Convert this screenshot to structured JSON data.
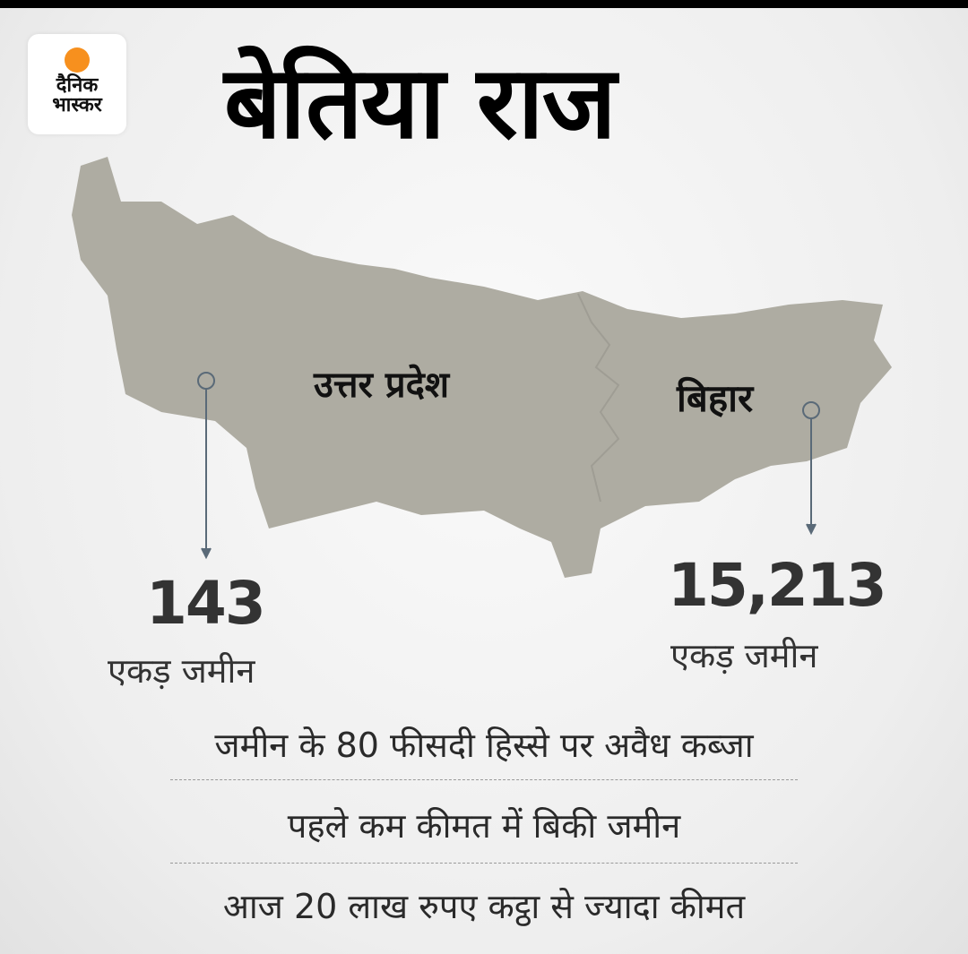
{
  "logo": {
    "line1": "दैनिक",
    "line2": "भास्कर",
    "accent_color": "#f7901e"
  },
  "title": "बेतिया राज",
  "map": {
    "fill_color": "#aeaca2",
    "regions": [
      {
        "name": "उत्तर प्रदेश",
        "value": "143",
        "unit": "एकड़ जमीन"
      },
      {
        "name": "बिहार",
        "value": "15,213",
        "unit": "एकड़ जमीन"
      }
    ]
  },
  "facts": [
    "जमीन के 80 फीसदी हिस्से पर अवैध कब्जा",
    "पहले कम कीमत में बिकी जमीन",
    "आज 20 लाख रुपए कट्ठा से ज्यादा कीमत"
  ]
}
